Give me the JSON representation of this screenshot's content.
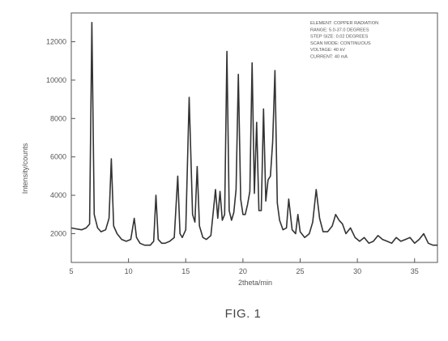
{
  "caption": "FIG. 1",
  "chart_data": {
    "type": "line",
    "title": "",
    "xlabel": "2theta/min",
    "ylabel": "Intensity/counts",
    "xlim": [
      5,
      37
    ],
    "ylim": [
      500,
      13500
    ],
    "x_ticks": [
      5,
      10,
      15,
      20,
      25,
      30,
      35
    ],
    "y_ticks": [
      2000,
      4000,
      6000,
      8000,
      10000,
      12000
    ],
    "grid": false,
    "legend": {
      "placement": "top-right",
      "lines": [
        "ELEMENT: COPPER  RADIATION",
        "RANGE: 5.0-37.0 DEGREES",
        "STEP SIZE: 0.02 DEGREES",
        "SCAN MODE: CONTINUOUS",
        "VOLTAGE: 40 kV",
        "CURRENT: 40 mA"
      ]
    },
    "series": [
      {
        "x": [
          5.0,
          5.4,
          5.9,
          6.3,
          6.6,
          6.8,
          7.0,
          7.3,
          7.6,
          8.0,
          8.3,
          8.5,
          8.7,
          9.0,
          9.4,
          9.8,
          10.2,
          10.5,
          10.7,
          11.0,
          11.4,
          11.9,
          12.2,
          12.4,
          12.6,
          12.9,
          13.2,
          13.6,
          14.0,
          14.3,
          14.5,
          14.7,
          15.0,
          15.3,
          15.6,
          15.8,
          16.0,
          16.2,
          16.5,
          16.8,
          17.2,
          17.6,
          17.8,
          18.0,
          18.2,
          18.4,
          18.6,
          18.8,
          19.0,
          19.2,
          19.4,
          19.6,
          19.8,
          20.0,
          20.2,
          20.4,
          20.6,
          20.8,
          21.0,
          21.2,
          21.4,
          21.6,
          21.8,
          22.0,
          22.2,
          22.4,
          22.6,
          22.8,
          23.0,
          23.2,
          23.5,
          23.8,
          24.0,
          24.3,
          24.6,
          24.8,
          25.0,
          25.4,
          25.8,
          26.1,
          26.4,
          26.7,
          27.0,
          27.4,
          27.8,
          28.1,
          28.4,
          28.7,
          29.0,
          29.4,
          29.8,
          30.2,
          30.6,
          31.0,
          31.4,
          31.8,
          32.2,
          32.6,
          33.0,
          33.4,
          33.8,
          34.2,
          34.6,
          35.0,
          35.4,
          35.8,
          36.2,
          36.6,
          37.0
        ],
        "values": [
          2300,
          2250,
          2200,
          2300,
          2500,
          13000,
          3000,
          2300,
          2100,
          2200,
          2800,
          5900,
          2400,
          2000,
          1700,
          1600,
          1700,
          2800,
          1800,
          1500,
          1400,
          1400,
          1600,
          4000,
          1700,
          1500,
          1500,
          1600,
          1800,
          5000,
          2000,
          1800,
          2200,
          9100,
          3000,
          2600,
          5500,
          2400,
          1800,
          1700,
          1900,
          4300,
          2800,
          4200,
          2700,
          3000,
          11500,
          3200,
          2700,
          3100,
          4300,
          10300,
          3800,
          3000,
          3000,
          3500,
          4200,
          10900,
          4100,
          7800,
          3200,
          3200,
          8500,
          3700,
          4800,
          5000,
          6800,
          10500,
          3600,
          2700,
          2200,
          2300,
          3800,
          2200,
          2000,
          3000,
          2100,
          1800,
          2000,
          2600,
          4300,
          2800,
          2100,
          2100,
          2400,
          3000,
          2700,
          2500,
          2000,
          2300,
          1800,
          1600,
          1800,
          1500,
          1600,
          1900,
          1700,
          1600,
          1500,
          1800,
          1600,
          1700,
          1800,
          1500,
          1700,
          2000,
          1500,
          1400,
          1400
        ]
      }
    ]
  }
}
